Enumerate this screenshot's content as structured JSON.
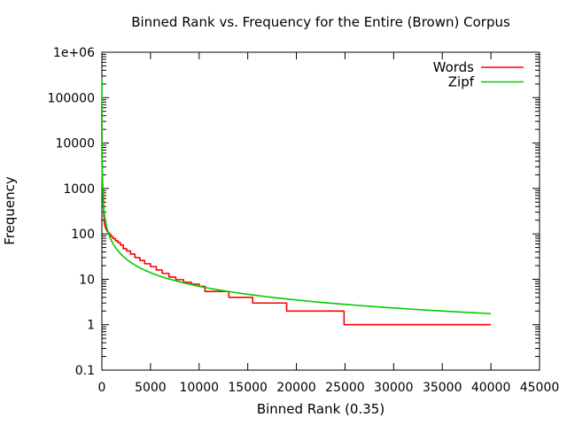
{
  "figure": {
    "background": "#ffffff"
  },
  "chart_data": {
    "type": "line",
    "title": "Binned Rank vs. Frequency for the Entire (Brown) Corpus",
    "xlabel": "Binned Rank (0.35)",
    "ylabel": "Frequency",
    "grid": false,
    "x_axis": {
      "scale": "linear",
      "min": 0,
      "max": 45000,
      "ticks": [
        0,
        5000,
        10000,
        15000,
        20000,
        25000,
        30000,
        35000,
        40000,
        45000
      ],
      "tick_labels": [
        "0",
        "5000",
        "10000",
        "15000",
        "20000",
        "25000",
        "30000",
        "35000",
        "40000",
        "45000"
      ]
    },
    "y_axis": {
      "scale": "log",
      "min": 0.1,
      "max": 1000000,
      "ticks": [
        0.1,
        1,
        10,
        100,
        1000,
        10000,
        100000,
        1000000
      ],
      "tick_labels": [
        "0.1",
        "1",
        "10",
        "100",
        "1000",
        "10000",
        "100000",
        "1e+06"
      ],
      "minor_tick_multiples": [
        2,
        3,
        4,
        5,
        6,
        7,
        8,
        9
      ]
    },
    "legend": {
      "position": "top-right-inside",
      "entries": [
        "Words",
        "Zipf"
      ]
    },
    "series": [
      {
        "name": "Words",
        "color": "#ff0000",
        "style": "steps",
        "points": [
          [
            0.35,
            69971
          ],
          [
            0.7,
            36410
          ],
          [
            1,
            28850
          ],
          [
            2,
            19000
          ],
          [
            3,
            14000
          ],
          [
            5,
            9800
          ],
          [
            8,
            6900
          ],
          [
            12,
            4900
          ],
          [
            18,
            3500
          ],
          [
            27,
            2500
          ],
          [
            40,
            1800
          ],
          [
            58,
            1300
          ],
          [
            85,
            950
          ],
          [
            120,
            700
          ],
          [
            160,
            480
          ],
          [
            180,
            330
          ],
          [
            200,
            240
          ],
          [
            230,
            190
          ],
          [
            260,
            165
          ],
          [
            300,
            150
          ],
          [
            360,
            136
          ],
          [
            430,
            124
          ],
          [
            520,
            115
          ],
          [
            640,
            105
          ],
          [
            780,
            96
          ],
          [
            950,
            87
          ],
          [
            1150,
            79
          ],
          [
            1400,
            70
          ],
          [
            1650,
            64
          ],
          [
            1900,
            57
          ],
          [
            2200,
            47
          ],
          [
            2550,
            42
          ],
          [
            2950,
            36
          ],
          [
            3400,
            30
          ],
          [
            3900,
            26
          ],
          [
            4400,
            22
          ],
          [
            5000,
            19
          ],
          [
            5600,
            16
          ],
          [
            6200,
            13.5
          ],
          [
            6900,
            11.2
          ],
          [
            7600,
            9.8
          ],
          [
            8400,
            8.6
          ],
          [
            9200,
            7.8
          ],
          [
            10000,
            7.0
          ],
          [
            10600,
            5.4
          ],
          [
            13050,
            4.0
          ],
          [
            15500,
            3.0
          ],
          [
            19000,
            2.0
          ],
          [
            24900,
            1.0
          ],
          [
            40000,
            1.0
          ]
        ]
      },
      {
        "name": "Zipf",
        "color": "#00cc00",
        "style": "smooth",
        "formula": {
          "C": 70000,
          "exponent": 1.0
        },
        "r_min": 0.25,
        "r_max": 40000
      }
    ]
  }
}
